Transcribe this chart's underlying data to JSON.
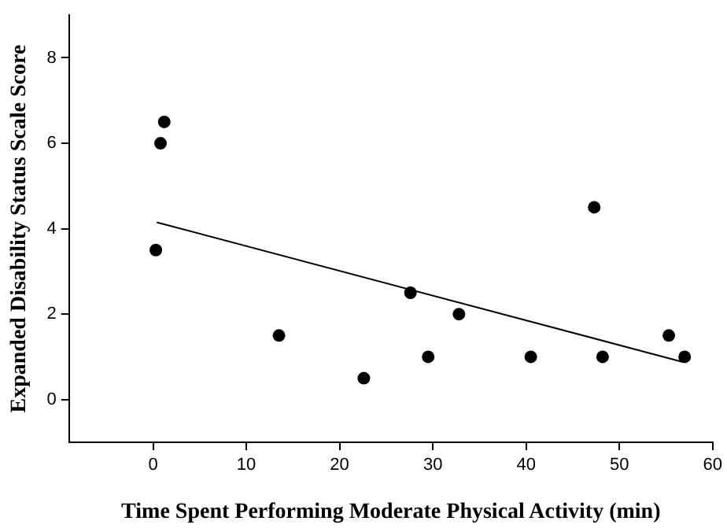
{
  "chart_data": {
    "type": "scatter",
    "xlabel": "Time Spent Performing Moderate Physical Activity (min)",
    "ylabel": "Expanded Disability Status Scale Score",
    "xlim": [
      -9,
      60
    ],
    "xticks": [
      0,
      10,
      20,
      30,
      40,
      50,
      60
    ],
    "ylim": [
      -1,
      9
    ],
    "yticks": [
      0,
      2,
      4,
      6,
      8
    ],
    "marker": "circle",
    "series": [
      {
        "color": "#000000",
        "x": [
          0.3,
          0.8,
          1.2,
          13.5,
          22.6,
          27.6,
          29.5,
          32.8,
          40.5,
          47.3,
          48.2,
          55.3,
          57
        ],
        "values": [
          3.5,
          6,
          6.5,
          1.5,
          0.5,
          2.5,
          1,
          2,
          1,
          4.5,
          1,
          1.5,
          1
        ]
      },
      {
        "type": "line",
        "marker": "none",
        "color": "#000000",
        "x": [
          0.4,
          56.8
        ],
        "values": [
          4.15,
          0.88
        ]
      }
    ]
  }
}
